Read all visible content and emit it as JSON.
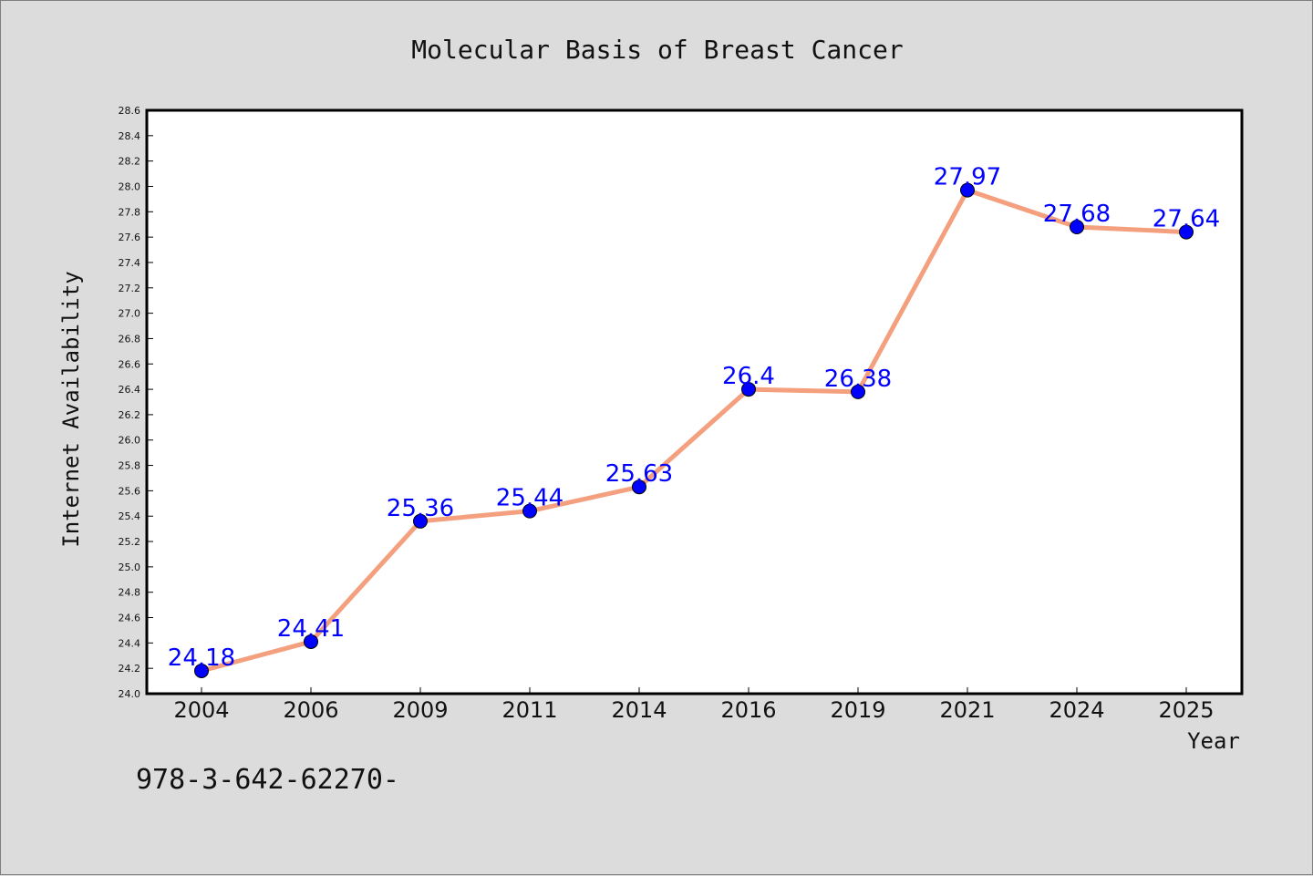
{
  "chart_data": {
    "type": "line",
    "title": "Molecular Basis of Breast Cancer",
    "xlabel": "Year",
    "ylabel": "Internet Availability",
    "categories": [
      "2004",
      "2006",
      "2009",
      "2011",
      "2014",
      "2016",
      "2019",
      "2021",
      "2024",
      "2025"
    ],
    "series": [
      {
        "values": [
          24.18,
          24.41,
          25.36,
          25.44,
          25.63,
          26.4,
          26.38,
          27.97,
          27.68,
          27.64
        ],
        "labels": [
          "24.18",
          "24.41",
          "25.36",
          "25.44",
          "25.63",
          "26.4",
          "26.38",
          "27.97",
          "27.68",
          "27.64"
        ]
      }
    ],
    "ylim": [
      24.0,
      28.6
    ],
    "yticks": [
      "24.0",
      "24.2",
      "24.4",
      "24.6",
      "24.8",
      "25.0",
      "25.2",
      "25.4",
      "25.6",
      "25.8",
      "26.0",
      "26.2",
      "26.4",
      "26.6",
      "26.8",
      "27.0",
      "27.2",
      "27.4",
      "27.6",
      "27.8",
      "28.0",
      "28.2",
      "28.4",
      "28.6"
    ],
    "grid": false,
    "line_color": "#f4a07e",
    "marker_color": "#0000ff",
    "label_color": "#0000ff",
    "background": "#dcdcdc",
    "plot_background": "#ffffff"
  },
  "caption": "978-3-642-62270-"
}
